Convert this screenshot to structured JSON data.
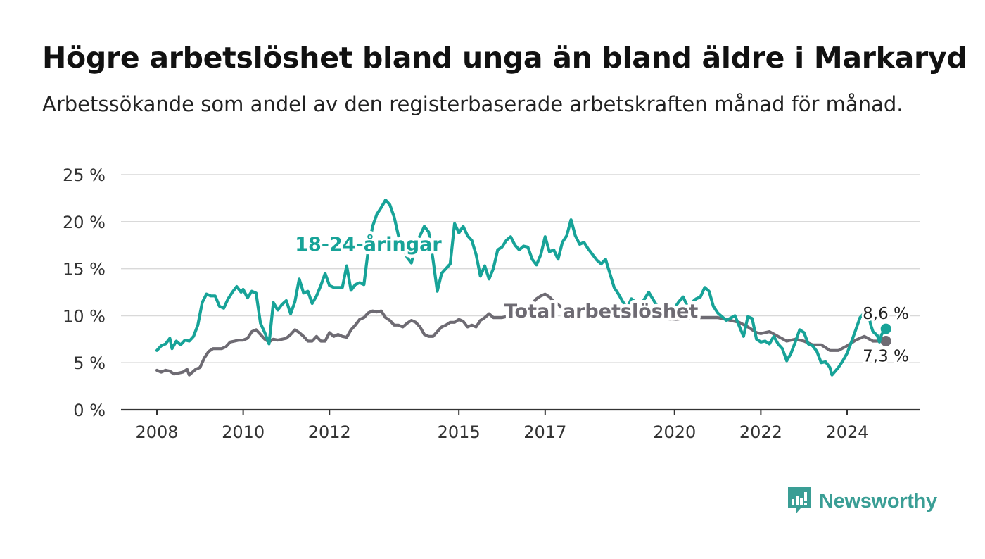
{
  "header": {
    "title": "Högre arbetslöshet bland unga än bland äldre i Markaryd",
    "subtitle": "Arbetssökande som andel av den registerbaserade arbetskraften månad för månad."
  },
  "brand": {
    "name": "Newsworthy",
    "icon": "newsworthy-logo-icon",
    "color": "#3a9e95"
  },
  "chart_data": {
    "type": "line",
    "title": "Högre arbetslöshet bland unga än bland äldre i Markaryd",
    "subtitle": "Arbetssökande som andel av den registerbaserade arbetskraften månad för månad.",
    "ylim": [
      0,
      25
    ],
    "xlim": [
      2007.7,
      2025.2
    ],
    "grid": true,
    "y_ticks": [
      {
        "value": 0,
        "label": "0 %"
      },
      {
        "value": 5,
        "label": "5 %"
      },
      {
        "value": 10,
        "label": "10 %"
      },
      {
        "value": 15,
        "label": "15 %"
      },
      {
        "value": 20,
        "label": "20 %"
      },
      {
        "value": 25,
        "label": "25 %"
      }
    ],
    "x_ticks": [
      {
        "value": 2008,
        "label": "2008"
      },
      {
        "value": 2010,
        "label": "2010"
      },
      {
        "value": 2012,
        "label": "2012"
      },
      {
        "value": 2015,
        "label": "2015"
      },
      {
        "value": 2017,
        "label": "2017"
      },
      {
        "value": 2020,
        "label": "2020"
      },
      {
        "value": 2022,
        "label": "2022"
      },
      {
        "value": 2024,
        "label": "2024"
      }
    ],
    "series": [
      {
        "name": "Total arbetslöshet",
        "color": "#6e6b73",
        "end_label": "7,3 %",
        "label_at": {
          "x": 2018.3,
          "y": 9.8
        },
        "points": [
          [
            2008.0,
            4.2
          ],
          [
            2008.1,
            4.0
          ],
          [
            2008.2,
            4.2
          ],
          [
            2008.3,
            4.1
          ],
          [
            2008.4,
            3.8
          ],
          [
            2008.5,
            3.9
          ],
          [
            2008.6,
            4.0
          ],
          [
            2008.7,
            4.3
          ],
          [
            2008.75,
            3.7
          ],
          [
            2008.9,
            4.3
          ],
          [
            2009.0,
            4.5
          ],
          [
            2009.1,
            5.5
          ],
          [
            2009.2,
            6.2
          ],
          [
            2009.3,
            6.5
          ],
          [
            2009.4,
            6.5
          ],
          [
            2009.5,
            6.5
          ],
          [
            2009.6,
            6.7
          ],
          [
            2009.7,
            7.2
          ],
          [
            2009.8,
            7.3
          ],
          [
            2009.9,
            7.4
          ],
          [
            2010.0,
            7.4
          ],
          [
            2010.1,
            7.6
          ],
          [
            2010.2,
            8.3
          ],
          [
            2010.3,
            8.5
          ],
          [
            2010.4,
            8.0
          ],
          [
            2010.5,
            7.5
          ],
          [
            2010.6,
            7.2
          ],
          [
            2010.7,
            7.5
          ],
          [
            2010.8,
            7.4
          ],
          [
            2010.9,
            7.5
          ],
          [
            2011.0,
            7.6
          ],
          [
            2011.1,
            8.0
          ],
          [
            2011.2,
            8.5
          ],
          [
            2011.3,
            8.2
          ],
          [
            2011.4,
            7.8
          ],
          [
            2011.5,
            7.3
          ],
          [
            2011.6,
            7.3
          ],
          [
            2011.7,
            7.8
          ],
          [
            2011.8,
            7.3
          ],
          [
            2011.9,
            7.3
          ],
          [
            2012.0,
            8.2
          ],
          [
            2012.1,
            7.8
          ],
          [
            2012.2,
            8.0
          ],
          [
            2012.3,
            7.8
          ],
          [
            2012.4,
            7.7
          ],
          [
            2012.5,
            8.5
          ],
          [
            2012.6,
            9.0
          ],
          [
            2012.7,
            9.6
          ],
          [
            2012.8,
            9.8
          ],
          [
            2012.9,
            10.3
          ],
          [
            2013.0,
            10.5
          ],
          [
            2013.1,
            10.4
          ],
          [
            2013.2,
            10.5
          ],
          [
            2013.3,
            9.8
          ],
          [
            2013.4,
            9.5
          ],
          [
            2013.5,
            9.0
          ],
          [
            2013.6,
            9.0
          ],
          [
            2013.7,
            8.8
          ],
          [
            2013.8,
            9.2
          ],
          [
            2013.9,
            9.5
          ],
          [
            2014.0,
            9.3
          ],
          [
            2014.1,
            8.8
          ],
          [
            2014.2,
            8.0
          ],
          [
            2014.3,
            7.8
          ],
          [
            2014.4,
            7.8
          ],
          [
            2014.5,
            8.3
          ],
          [
            2014.6,
            8.8
          ],
          [
            2014.7,
            9.0
          ],
          [
            2014.8,
            9.3
          ],
          [
            2014.9,
            9.3
          ],
          [
            2015.0,
            9.6
          ],
          [
            2015.1,
            9.4
          ],
          [
            2015.2,
            8.8
          ],
          [
            2015.3,
            9.0
          ],
          [
            2015.4,
            8.8
          ],
          [
            2015.5,
            9.5
          ],
          [
            2015.6,
            9.8
          ],
          [
            2015.7,
            10.2
          ],
          [
            2015.8,
            9.8
          ],
          [
            2015.9,
            9.8
          ],
          [
            2016.0,
            9.8
          ],
          [
            2016.1,
            9.9
          ],
          [
            2016.2,
            9.8
          ],
          [
            2016.3,
            10.2
          ],
          [
            2016.4,
            10.8
          ],
          [
            2016.5,
            10.4
          ],
          [
            2016.6,
            10.8
          ],
          [
            2016.7,
            11.3
          ],
          [
            2016.8,
            11.8
          ],
          [
            2016.9,
            12.1
          ],
          [
            2017.0,
            12.3
          ],
          [
            2017.1,
            12.0
          ],
          [
            2017.2,
            11.5
          ],
          [
            2017.3,
            11.2
          ],
          [
            2017.4,
            10.8
          ],
          [
            2017.5,
            10.5
          ],
          [
            2017.6,
            10.5
          ],
          [
            2017.7,
            10.7
          ],
          [
            2018.0,
            10.2
          ],
          [
            2018.5,
            10.0
          ],
          [
            2019.0,
            9.8
          ],
          [
            2019.5,
            9.8
          ],
          [
            2020.0,
            9.6
          ],
          [
            2020.5,
            9.8
          ],
          [
            2021.0,
            9.8
          ],
          [
            2021.5,
            9.3
          ],
          [
            2021.7,
            8.8
          ],
          [
            2021.9,
            8.2
          ],
          [
            2022.0,
            8.1
          ],
          [
            2022.2,
            8.3
          ],
          [
            2022.4,
            7.8
          ],
          [
            2022.6,
            7.3
          ],
          [
            2022.8,
            7.5
          ],
          [
            2023.0,
            7.3
          ],
          [
            2023.2,
            6.9
          ],
          [
            2023.4,
            6.9
          ],
          [
            2023.6,
            6.3
          ],
          [
            2023.8,
            6.3
          ],
          [
            2024.0,
            6.8
          ],
          [
            2024.2,
            7.4
          ],
          [
            2024.4,
            7.8
          ],
          [
            2024.6,
            7.3
          ],
          [
            2024.8,
            7.3
          ],
          [
            2024.9,
            7.3
          ]
        ]
      },
      {
        "name": "18-24-åringar",
        "color": "#17a398",
        "end_label": "8,6 %",
        "label_at": {
          "x": 2012.9,
          "y": 16.9
        },
        "points": [
          [
            2008.0,
            6.3
          ],
          [
            2008.1,
            6.8
          ],
          [
            2008.2,
            7.0
          ],
          [
            2008.3,
            7.6
          ],
          [
            2008.35,
            6.5
          ],
          [
            2008.45,
            7.3
          ],
          [
            2008.55,
            6.9
          ],
          [
            2008.65,
            7.4
          ],
          [
            2008.75,
            7.3
          ],
          [
            2008.85,
            7.8
          ],
          [
            2008.95,
            9.0
          ],
          [
            2009.05,
            11.4
          ],
          [
            2009.15,
            12.3
          ],
          [
            2009.25,
            12.1
          ],
          [
            2009.35,
            12.1
          ],
          [
            2009.45,
            11.0
          ],
          [
            2009.55,
            10.8
          ],
          [
            2009.65,
            11.8
          ],
          [
            2009.75,
            12.5
          ],
          [
            2009.85,
            13.1
          ],
          [
            2009.95,
            12.5
          ],
          [
            2010.0,
            12.8
          ],
          [
            2010.1,
            11.9
          ],
          [
            2010.2,
            12.6
          ],
          [
            2010.3,
            12.4
          ],
          [
            2010.4,
            9.2
          ],
          [
            2010.5,
            8.2
          ],
          [
            2010.6,
            7.0
          ],
          [
            2010.7,
            11.4
          ],
          [
            2010.8,
            10.6
          ],
          [
            2010.9,
            11.2
          ],
          [
            2011.0,
            11.6
          ],
          [
            2011.1,
            10.2
          ],
          [
            2011.2,
            11.5
          ],
          [
            2011.3,
            13.9
          ],
          [
            2011.4,
            12.4
          ],
          [
            2011.5,
            12.6
          ],
          [
            2011.6,
            11.3
          ],
          [
            2011.7,
            12.1
          ],
          [
            2011.8,
            13.2
          ],
          [
            2011.9,
            14.5
          ],
          [
            2012.0,
            13.2
          ],
          [
            2012.1,
            13.0
          ],
          [
            2012.2,
            13.0
          ],
          [
            2012.3,
            13.0
          ],
          [
            2012.4,
            15.3
          ],
          [
            2012.5,
            12.7
          ],
          [
            2012.6,
            13.3
          ],
          [
            2012.7,
            13.5
          ],
          [
            2012.8,
            13.3
          ],
          [
            2012.9,
            17.0
          ],
          [
            2013.0,
            19.5
          ],
          [
            2013.1,
            20.8
          ],
          [
            2013.2,
            21.5
          ],
          [
            2013.3,
            22.3
          ],
          [
            2013.4,
            21.8
          ],
          [
            2013.5,
            20.5
          ],
          [
            2013.6,
            18.5
          ],
          [
            2013.7,
            17.5
          ],
          [
            2013.8,
            16.2
          ],
          [
            2013.9,
            15.6
          ],
          [
            2014.0,
            17.5
          ],
          [
            2014.1,
            18.5
          ],
          [
            2014.2,
            19.5
          ],
          [
            2014.3,
            18.9
          ],
          [
            2014.4,
            16.0
          ],
          [
            2014.5,
            12.6
          ],
          [
            2014.6,
            14.5
          ],
          [
            2014.7,
            15.0
          ],
          [
            2014.8,
            15.5
          ],
          [
            2014.9,
            19.8
          ],
          [
            2015.0,
            18.8
          ],
          [
            2015.1,
            19.5
          ],
          [
            2015.2,
            18.5
          ],
          [
            2015.3,
            18.0
          ],
          [
            2015.4,
            16.5
          ],
          [
            2015.5,
            14.2
          ],
          [
            2015.6,
            15.3
          ],
          [
            2015.7,
            13.9
          ],
          [
            2015.8,
            15.0
          ],
          [
            2015.9,
            17.0
          ],
          [
            2016.0,
            17.3
          ],
          [
            2016.1,
            18.0
          ],
          [
            2016.2,
            18.4
          ],
          [
            2016.3,
            17.5
          ],
          [
            2016.4,
            17.0
          ],
          [
            2016.5,
            17.4
          ],
          [
            2016.6,
            17.3
          ],
          [
            2016.7,
            16.0
          ],
          [
            2016.8,
            15.4
          ],
          [
            2016.9,
            16.5
          ],
          [
            2017.0,
            18.4
          ],
          [
            2017.1,
            16.8
          ],
          [
            2017.2,
            17.0
          ],
          [
            2017.3,
            16.0
          ],
          [
            2017.4,
            17.8
          ],
          [
            2017.5,
            18.5
          ],
          [
            2017.6,
            20.2
          ],
          [
            2017.7,
            18.5
          ],
          [
            2017.8,
            17.6
          ],
          [
            2017.9,
            17.8
          ],
          [
            2018.0,
            17.1
          ],
          [
            2018.1,
            16.5
          ],
          [
            2018.2,
            15.9
          ],
          [
            2018.3,
            15.5
          ],
          [
            2018.4,
            16.0
          ],
          [
            2018.5,
            14.5
          ],
          [
            2018.6,
            13.0
          ],
          [
            2018.7,
            12.3
          ],
          [
            2018.8,
            11.5
          ],
          [
            2018.9,
            10.8
          ],
          [
            2019.0,
            11.8
          ],
          [
            2019.2,
            11.0
          ],
          [
            2019.4,
            12.5
          ],
          [
            2019.6,
            11.0
          ],
          [
            2019.8,
            10.2
          ],
          [
            2020.0,
            10.8
          ],
          [
            2020.1,
            11.5
          ],
          [
            2020.2,
            12.0
          ],
          [
            2020.3,
            11.0
          ],
          [
            2020.5,
            11.8
          ],
          [
            2020.6,
            12.0
          ],
          [
            2020.7,
            13.0
          ],
          [
            2020.8,
            12.6
          ],
          [
            2020.9,
            11.0
          ],
          [
            2021.0,
            10.3
          ],
          [
            2021.2,
            9.5
          ],
          [
            2021.4,
            10.0
          ],
          [
            2021.6,
            7.8
          ],
          [
            2021.7,
            9.9
          ],
          [
            2021.8,
            9.7
          ],
          [
            2021.9,
            7.5
          ],
          [
            2022.0,
            7.2
          ],
          [
            2022.1,
            7.3
          ],
          [
            2022.2,
            7.0
          ],
          [
            2022.3,
            7.8
          ],
          [
            2022.4,
            7.0
          ],
          [
            2022.5,
            6.5
          ],
          [
            2022.6,
            5.2
          ],
          [
            2022.7,
            6.0
          ],
          [
            2022.8,
            7.2
          ],
          [
            2022.9,
            8.5
          ],
          [
            2023.0,
            8.2
          ],
          [
            2023.1,
            7.0
          ],
          [
            2023.2,
            6.8
          ],
          [
            2023.3,
            6.2
          ],
          [
            2023.4,
            5.0
          ],
          [
            2023.5,
            5.1
          ],
          [
            2023.6,
            4.5
          ],
          [
            2023.65,
            3.7
          ],
          [
            2023.8,
            4.5
          ],
          [
            2023.9,
            5.2
          ],
          [
            2024.0,
            6.0
          ],
          [
            2024.1,
            7.2
          ],
          [
            2024.2,
            8.5
          ],
          [
            2024.3,
            9.8
          ],
          [
            2024.4,
            10.3
          ],
          [
            2024.5,
            10.0
          ],
          [
            2024.55,
            9.0
          ],
          [
            2024.6,
            8.3
          ],
          [
            2024.7,
            7.9
          ],
          [
            2024.75,
            7.2
          ],
          [
            2024.8,
            8.0
          ],
          [
            2024.9,
            8.6
          ]
        ]
      }
    ]
  }
}
